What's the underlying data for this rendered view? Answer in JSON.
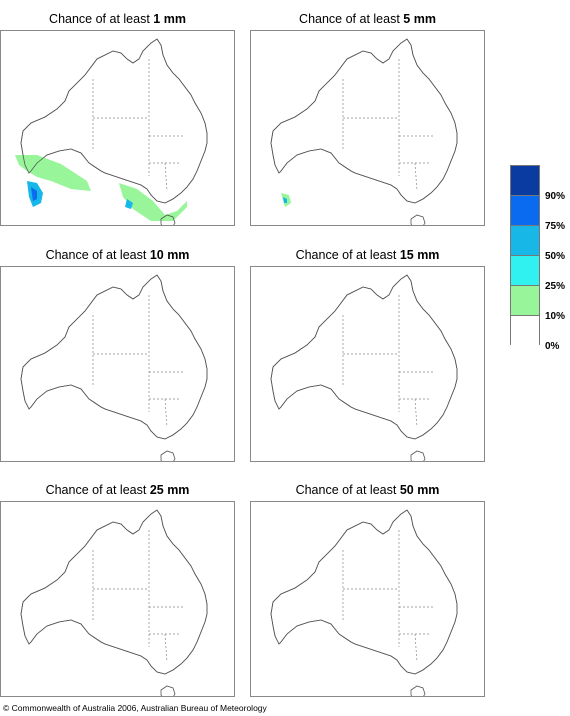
{
  "panels": [
    {
      "prefix": "Chance of at least",
      "amount": "1 mm",
      "rain": "p1"
    },
    {
      "prefix": "Chance of at least",
      "amount": "5 mm",
      "rain": "p2"
    },
    {
      "prefix": "Chance of at least",
      "amount": "10 mm",
      "rain": ""
    },
    {
      "prefix": "Chance of at least",
      "amount": "15 mm",
      "rain": ""
    },
    {
      "prefix": "Chance of at least",
      "amount": "25 mm",
      "rain": ""
    },
    {
      "prefix": "Chance of at least",
      "amount": "50 mm",
      "rain": ""
    }
  ],
  "legend": {
    "colors": [
      "#0a3ba0",
      "#0a6af0",
      "#17b7e8",
      "#30f0f0",
      "#99f599",
      "#ffffff"
    ],
    "labels": [
      "90%",
      "75%",
      "50%",
      "25%",
      "10%",
      "0%"
    ]
  },
  "copyright": "© Commonwealth of Australia 2006, Australian Bureau of Meteorology"
}
